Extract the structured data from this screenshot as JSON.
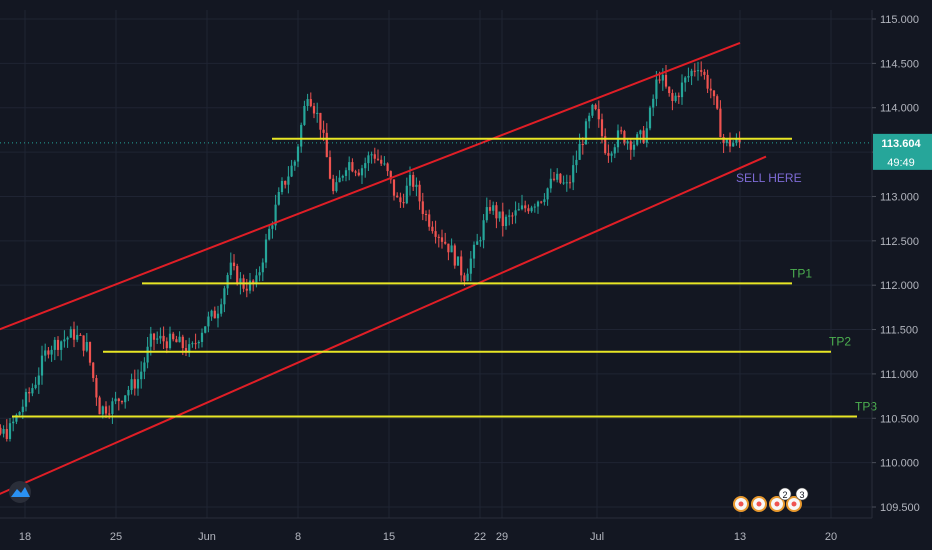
{
  "chart_data": {
    "type": "candlestick",
    "title": "",
    "xlabel": "",
    "ylabel": "",
    "ylim": [
      109.4,
      115.2
    ],
    "x_ticks": [
      "18",
      "25",
      "Jun",
      "8",
      "15",
      "22",
      "29",
      "Jul",
      "13",
      "20"
    ],
    "y_ticks": [
      "115.000",
      "114.500",
      "114.000",
      "113.500",
      "113.000",
      "112.500",
      "112.000",
      "111.500",
      "111.000",
      "110.500",
      "110.000",
      "109.500"
    ],
    "grid": true,
    "price_label": "113.604",
    "countdown_label": "49:49",
    "colors": {
      "background": "#131722",
      "grid": "#1f2433",
      "up": "#26a69a",
      "down": "#ef5350",
      "channel": "#e01e26",
      "level": "#e8e625",
      "tp_text": "#4caf50",
      "sell_text": "#7e6bd6",
      "price_badge": "#26a69a"
    },
    "channel": {
      "upper": [
        {
          "x": "May 13",
          "y": 111.33
        },
        {
          "x": "Jul 12",
          "y": 114.73
        }
      ],
      "lower": [
        {
          "x": "May 13",
          "y": 109.45
        },
        {
          "x": "Jul 14",
          "y": 113.45
        }
      ]
    },
    "levels": [
      {
        "price": 113.65,
        "from": "Jun 6",
        "to": "Jul 16"
      },
      {
        "price": 112.02,
        "from": "May 27",
        "to": "Jul 16",
        "label": "TP1"
      },
      {
        "price": 111.25,
        "from": "May 24",
        "to": "Jul 19",
        "label": "TP2"
      },
      {
        "price": 110.52,
        "from": "May 17",
        "to": "Jul 21",
        "label": "TP3"
      }
    ],
    "annotation": "SELL HERE",
    "badge_1": "2",
    "badge_2": "3",
    "price_path": [
      {
        "x": "May 13",
        "y": 110.1
      },
      {
        "x": "May 15",
        "y": 110.25
      },
      {
        "x": "May 17",
        "y": 110.35
      },
      {
        "x": "May 19",
        "y": 110.9
      },
      {
        "x": "May 20",
        "y": 111.3
      },
      {
        "x": "May 22",
        "y": 111.45
      },
      {
        "x": "May 23",
        "y": 111.3
      },
      {
        "x": "May 24",
        "y": 110.6
      },
      {
        "x": "May 25",
        "y": 110.65
      },
      {
        "x": "May 27",
        "y": 110.95
      },
      {
        "x": "May 28",
        "y": 111.4
      },
      {
        "x": "May 30",
        "y": 111.35
      },
      {
        "x": "May 31",
        "y": 111.25
      },
      {
        "x": "Jun 1",
        "y": 111.55
      },
      {
        "x": "Jun 2",
        "y": 111.7
      },
      {
        "x": "Jun 3",
        "y": 112.2
      },
      {
        "x": "Jun 4",
        "y": 112.0
      },
      {
        "x": "Jun 5",
        "y": 112.0
      },
      {
        "x": "Jun 6",
        "y": 112.6
      },
      {
        "x": "Jun 7",
        "y": 113.1
      },
      {
        "x": "Jun 8",
        "y": 113.4
      },
      {
        "x": "Jun 9",
        "y": 114.2
      },
      {
        "x": "Jun 10",
        "y": 113.8
      },
      {
        "x": "Jun 11",
        "y": 113.0
      },
      {
        "x": "Jun 12",
        "y": 113.4
      },
      {
        "x": "Jun 13",
        "y": 113.3
      },
      {
        "x": "Jun 14",
        "y": 113.5
      },
      {
        "x": "Jun 15",
        "y": 113.3
      },
      {
        "x": "Jun 16",
        "y": 112.9
      },
      {
        "x": "Jun 17",
        "y": 113.2
      },
      {
        "x": "Jun 18",
        "y": 112.8
      },
      {
        "x": "Jun 19",
        "y": 112.6
      },
      {
        "x": "Jun 20",
        "y": 112.4
      },
      {
        "x": "Jun 21",
        "y": 112.1
      },
      {
        "x": "Jun 22",
        "y": 112.45
      },
      {
        "x": "Jun 23",
        "y": 112.9
      },
      {
        "x": "Jun 24",
        "y": 112.7
      },
      {
        "x": "Jun 25",
        "y": 112.8
      },
      {
        "x": "Jun 26",
        "y": 112.9
      },
      {
        "x": "Jun 27",
        "y": 113.0
      },
      {
        "x": "Jun 28",
        "y": 113.2
      },
      {
        "x": "Jun 29",
        "y": 113.1
      },
      {
        "x": "Jun 30",
        "y": 113.6
      },
      {
        "x": "Jul 1",
        "y": 114.0
      },
      {
        "x": "Jul 2",
        "y": 113.5
      },
      {
        "x": "Jul 3",
        "y": 113.7
      },
      {
        "x": "Jul 4",
        "y": 113.6
      },
      {
        "x": "Jul 5",
        "y": 113.7
      },
      {
        "x": "Jul 6",
        "y": 114.4
      },
      {
        "x": "Jul 7",
        "y": 114.05
      },
      {
        "x": "Jul 8",
        "y": 114.3
      },
      {
        "x": "Jul 9",
        "y": 114.5
      },
      {
        "x": "Jul 10",
        "y": 114.2
      },
      {
        "x": "Jul 11",
        "y": 113.6
      },
      {
        "x": "Jul 12",
        "y": 113.604
      }
    ]
  }
}
